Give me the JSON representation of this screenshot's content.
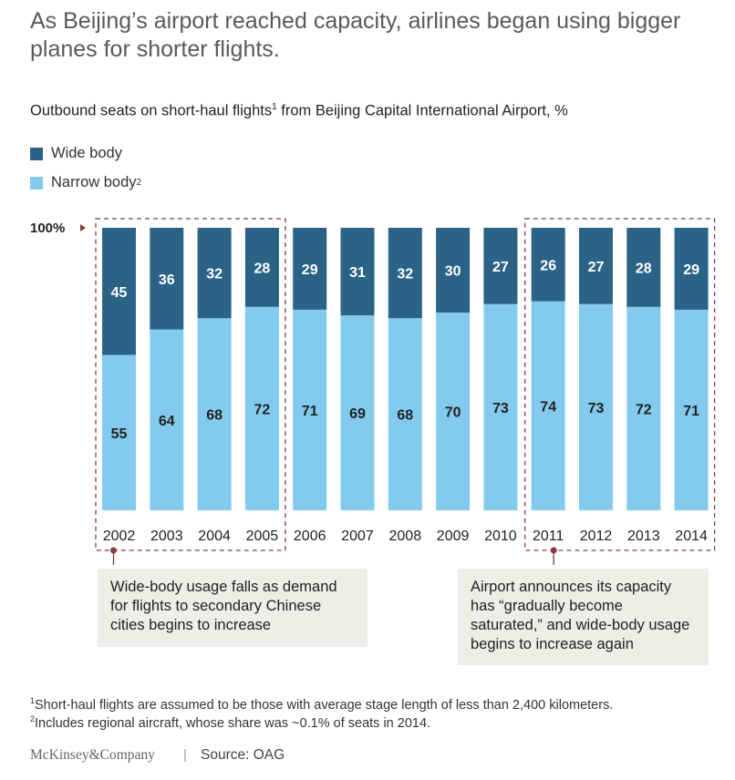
{
  "title": "As Beijing’s airport reached capacity, airlines began using bigger planes for shorter flights.",
  "subtitle": "Outbound seats on short-haul flights",
  "subtitle_sup": "1",
  "subtitle_rest": " from Beijing Capital International Airport, %",
  "legend": [
    {
      "label": "Wide body",
      "sup": "",
      "color": "#2b6387"
    },
    {
      "label": "Narrow body",
      "sup": "2",
      "color": "#82cbee"
    }
  ],
  "axis_top_label": "100%",
  "chart_data": {
    "type": "bar",
    "stacked": true,
    "categories": [
      "2002",
      "2003",
      "2004",
      "2005",
      "2006",
      "2007",
      "2008",
      "2009",
      "2010",
      "2011",
      "2012",
      "2013",
      "2014"
    ],
    "series": [
      {
        "name": "Narrow body",
        "values": [
          55,
          64,
          68,
          72,
          71,
          69,
          68,
          70,
          73,
          74,
          73,
          72,
          71
        ]
      },
      {
        "name": "Wide body",
        "values": [
          45,
          36,
          32,
          28,
          29,
          31,
          32,
          30,
          27,
          26,
          27,
          28,
          29
        ]
      }
    ],
    "ylim": [
      0,
      100
    ],
    "highlight_groups": [
      {
        "from": "2002",
        "to": "2005"
      },
      {
        "from": "2011",
        "to": "2014"
      }
    ]
  },
  "annotations": [
    "Wide-body usage falls as demand for flights to secondary Chinese cities begins to increase",
    "Airport announces its capacity has “gradually become saturated,” and wide-body usage begins to increase again"
  ],
  "footnotes": [
    {
      "sup": "1",
      "text": "Short-haul flights are assumed to be those with average stage length of less than 2,400 kilometers."
    },
    {
      "sup": "2",
      "text": "Includes regional aircraft, whose share was ~0.1% of seats in 2014."
    }
  ],
  "brand": "McKinsey&Company",
  "separator": "|",
  "source": "Source: OAG",
  "colors": {
    "wide": "#2b6387",
    "narrow": "#82cbee",
    "dashed_box": "#8b3a3a",
    "annotation_bg": "#eeede6"
  }
}
